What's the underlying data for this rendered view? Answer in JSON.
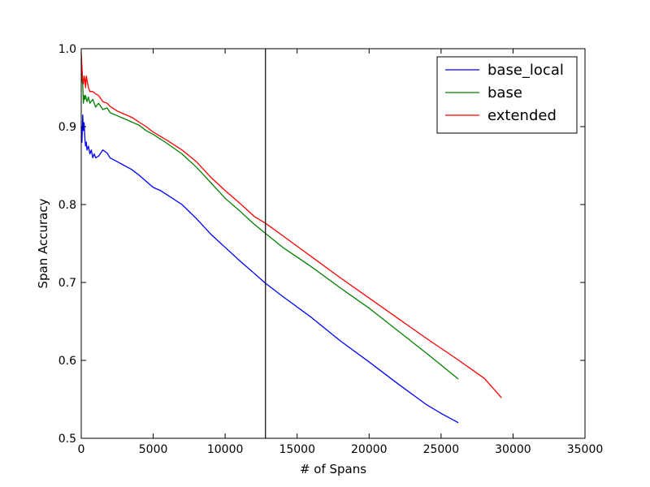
{
  "chart_data": {
    "type": "line",
    "title": "",
    "xlabel": "# of Spans",
    "ylabel": "Span Accuracy",
    "xlim": [
      0,
      35000
    ],
    "ylim": [
      0.5,
      1.0
    ],
    "xticks": [
      0,
      5000,
      10000,
      15000,
      20000,
      25000,
      30000,
      35000
    ],
    "xtick_labels": [
      "0",
      "5000",
      "10000",
      "15000",
      "20000",
      "25000",
      "30000",
      "35000"
    ],
    "yticks": [
      0.5,
      0.6,
      0.7,
      0.8,
      0.9,
      1.0
    ],
    "ytick_labels": [
      "0.5",
      "0.6",
      "0.7",
      "0.8",
      "0.9",
      "1.0"
    ],
    "grid": false,
    "legend_position": "top-right",
    "vertical_line_x": 12800,
    "series": [
      {
        "name": "base_local",
        "color": "#0000ff",
        "x": [
          0,
          50,
          100,
          150,
          200,
          250,
          300,
          350,
          400,
          500,
          600,
          700,
          800,
          900,
          1000,
          1200,
          1500,
          1800,
          2000,
          2500,
          3000,
          3500,
          4000,
          4500,
          5000,
          5500,
          6000,
          7000,
          8000,
          9000,
          10000,
          11000,
          12000,
          12800,
          14000,
          16000,
          18000,
          20000,
          22000,
          24000,
          25000,
          26200
        ],
        "y": [
          0.9,
          0.88,
          0.915,
          0.895,
          0.905,
          0.885,
          0.875,
          0.88,
          0.87,
          0.875,
          0.865,
          0.87,
          0.86,
          0.865,
          0.86,
          0.862,
          0.87,
          0.866,
          0.86,
          0.855,
          0.85,
          0.845,
          0.838,
          0.83,
          0.822,
          0.818,
          0.812,
          0.8,
          0.782,
          0.762,
          0.745,
          0.728,
          0.712,
          0.699,
          0.682,
          0.655,
          0.625,
          0.598,
          0.57,
          0.543,
          0.532,
          0.52
        ]
      },
      {
        "name": "base",
        "color": "#008000",
        "x": [
          0,
          50,
          100,
          150,
          200,
          250,
          300,
          400,
          500,
          600,
          800,
          1000,
          1200,
          1500,
          1800,
          2000,
          2500,
          3000,
          3500,
          4000,
          4500,
          5000,
          6000,
          7000,
          8000,
          9000,
          10000,
          11000,
          12000,
          12800,
          14000,
          16000,
          18000,
          20000,
          22000,
          24000,
          26200
        ],
        "y": [
          0.985,
          0.96,
          0.955,
          0.93,
          0.94,
          0.935,
          0.94,
          0.932,
          0.938,
          0.93,
          0.935,
          0.925,
          0.93,
          0.922,
          0.924,
          0.918,
          0.914,
          0.91,
          0.906,
          0.902,
          0.895,
          0.89,
          0.878,
          0.865,
          0.848,
          0.828,
          0.808,
          0.792,
          0.775,
          0.763,
          0.745,
          0.72,
          0.693,
          0.667,
          0.638,
          0.609,
          0.576
        ]
      },
      {
        "name": "extended",
        "color": "#ff0000",
        "x": [
          0,
          50,
          100,
          150,
          200,
          250,
          300,
          350,
          400,
          500,
          600,
          800,
          1000,
          1200,
          1500,
          1800,
          2000,
          2500,
          3000,
          3500,
          4000,
          4500,
          5000,
          6000,
          7000,
          8000,
          9000,
          10000,
          11000,
          12000,
          12800,
          14000,
          16000,
          18000,
          20000,
          22000,
          24000,
          26000,
          28000,
          29200
        ],
        "y": [
          0.995,
          0.975,
          0.96,
          0.955,
          0.965,
          0.96,
          0.95,
          0.965,
          0.96,
          0.95,
          0.945,
          0.945,
          0.942,
          0.94,
          0.932,
          0.93,
          0.926,
          0.92,
          0.916,
          0.912,
          0.906,
          0.9,
          0.893,
          0.882,
          0.87,
          0.855,
          0.835,
          0.818,
          0.802,
          0.785,
          0.776,
          0.76,
          0.733,
          0.706,
          0.68,
          0.654,
          0.628,
          0.603,
          0.577,
          0.552
        ]
      }
    ]
  }
}
